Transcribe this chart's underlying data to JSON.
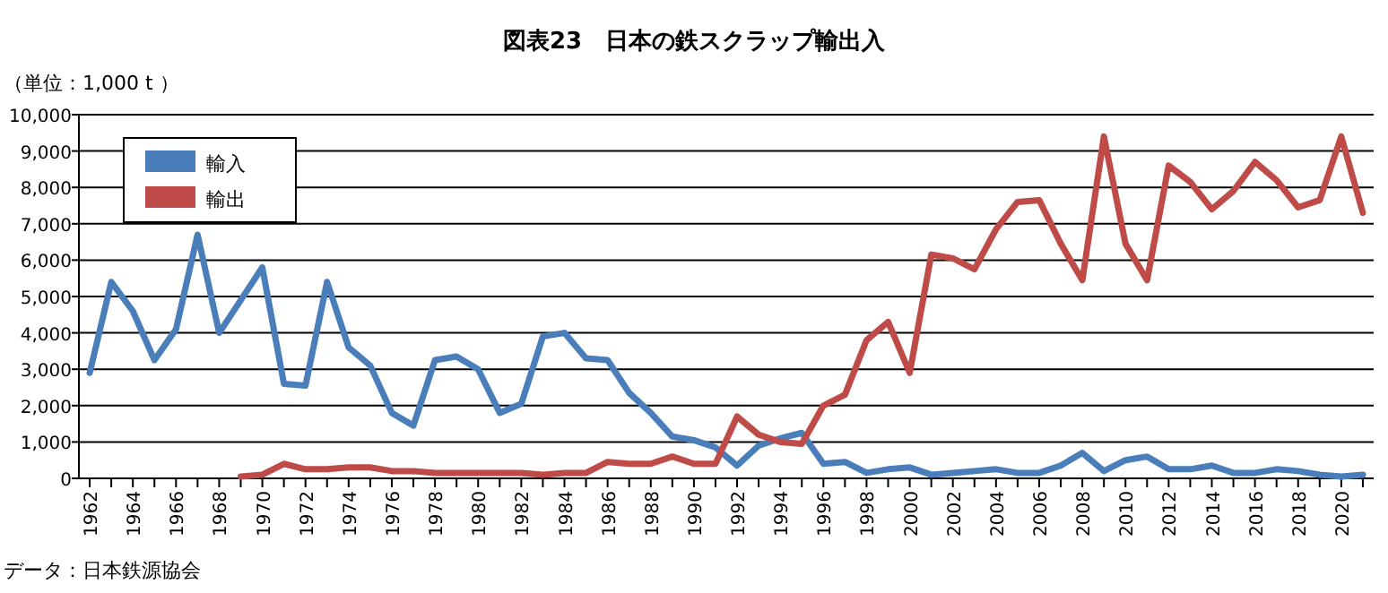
{
  "chart_data": {
    "type": "line",
    "title": "図表23　日本の鉄スクラップ輸出入",
    "ylabel": "（単位：1,000 t ）",
    "annotations": [
      "データ：日本鉄源協会"
    ],
    "x": [
      1962,
      1963,
      1964,
      1965,
      1966,
      1967,
      1968,
      1969,
      1970,
      1971,
      1972,
      1973,
      1974,
      1975,
      1976,
      1977,
      1978,
      1979,
      1980,
      1981,
      1982,
      1983,
      1984,
      1985,
      1986,
      1987,
      1988,
      1989,
      1990,
      1991,
      1992,
      1993,
      1994,
      1995,
      1996,
      1997,
      1998,
      1999,
      2000,
      2001,
      2002,
      2003,
      2004,
      2005,
      2006,
      2007,
      2008,
      2009,
      2010,
      2011,
      2012,
      2013,
      2014,
      2015,
      2016,
      2017,
      2018,
      2019,
      2020,
      2021
    ],
    "series": [
      {
        "name": "輸入",
        "color": "#4a7ebb",
        "values": [
          2900,
          5400,
          4600,
          3250,
          4100,
          6700,
          4000,
          4900,
          5800,
          2600,
          2550,
          5400,
          3600,
          3100,
          1800,
          1450,
          3250,
          3350,
          3000,
          1800,
          2050,
          3900,
          4000,
          3300,
          3250,
          2350,
          1800,
          1150,
          1050,
          850,
          350,
          900,
          1100,
          1250,
          400,
          450,
          150,
          250,
          300,
          100,
          150,
          200,
          250,
          150,
          150,
          350,
          700,
          200,
          500,
          600,
          250,
          250,
          350,
          150,
          150,
          250,
          200,
          100,
          50,
          100
        ]
      },
      {
        "name": "輸出",
        "color": "#be4b48",
        "values": [
          null,
          null,
          null,
          null,
          null,
          null,
          null,
          50,
          100,
          400,
          250,
          250,
          300,
          300,
          200,
          200,
          150,
          150,
          150,
          150,
          150,
          100,
          150,
          150,
          450,
          400,
          400,
          600,
          400,
          400,
          1700,
          1200,
          1000,
          950,
          2000,
          2300,
          3800,
          4300,
          2900,
          6150,
          6050,
          5750,
          6850,
          7600,
          7650,
          6450,
          5450,
          9400,
          6450,
          5450,
          8600,
          8150,
          7400,
          7900,
          8700,
          8200,
          7450,
          7650,
          9400,
          7300
        ]
      }
    ],
    "xlim": [
      1961.5,
      2021.5
    ],
    "xticks": [
      1962,
      1964,
      1966,
      1968,
      1970,
      1972,
      1974,
      1976,
      1978,
      1980,
      1982,
      1984,
      1986,
      1988,
      1990,
      1992,
      1994,
      1996,
      1998,
      2000,
      2002,
      2004,
      2006,
      2008,
      2010,
      2012,
      2014,
      2016,
      2018,
      2020
    ],
    "ylim": [
      0,
      10000
    ],
    "yticks": [
      0,
      {
        "value": 1000,
        "label": "1,000"
      },
      {
        "value": 2000,
        "label": "2,000"
      },
      {
        "value": 3000,
        "label": "3,000"
      },
      {
        "value": 4000,
        "label": "4,000"
      },
      {
        "value": 5000,
        "label": "5,000"
      },
      {
        "value": 6000,
        "label": "6,000"
      },
      {
        "value": 7000,
        "label": "7,000"
      },
      {
        "value": 8000,
        "label": "8,000"
      },
      {
        "value": 9000,
        "label": "9,000"
      },
      {
        "value": 10000,
        "label": "10,000"
      }
    ],
    "grid": "y",
    "legend": "top left",
    "marker": "none",
    "line_style": "solid"
  }
}
